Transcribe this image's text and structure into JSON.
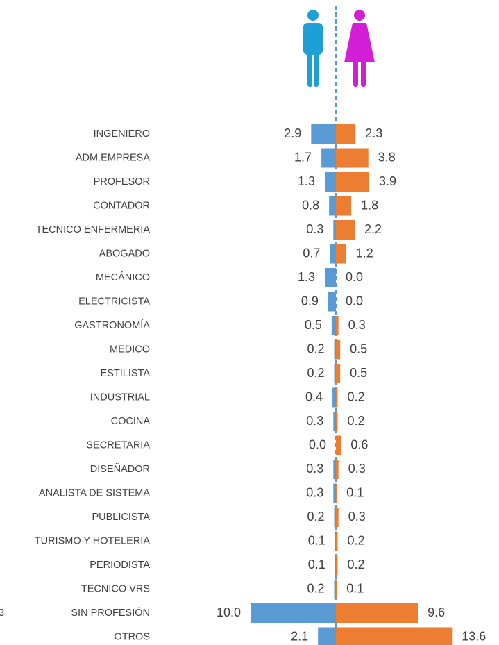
{
  "chart_data": {
    "type": "butterfly",
    "side_note": "3",
    "categories": [
      "INGENIERO",
      "ADM.EMPRESA",
      "PROFESOR",
      "CONTADOR",
      "TECNICO ENFERMERIA",
      "ABOGADO",
      "MECÁNICO",
      "ELECTRICISTA",
      "GASTRONOMÍA",
      "MEDICO",
      "ESTILISTA",
      "INDUSTRIAL",
      "COCINA",
      "SECRETARIA",
      "DISEÑADOR",
      "ANALISTA DE SISTEMA",
      "PUBLICISTA",
      "TURISMO Y HOTELERIA",
      "PERIODISTA",
      "TECNICO VRS",
      "SIN PROFESIÓN",
      "OTROS"
    ],
    "series": [
      {
        "color": "#5b9bd5",
        "side": "left",
        "values": [
          2.9,
          1.7,
          1.3,
          0.8,
          0.3,
          0.7,
          1.3,
          0.9,
          0.5,
          0.2,
          0.2,
          0.4,
          0.3,
          0,
          0.3,
          0.3,
          0.2,
          0.1,
          0.1,
          0.2,
          10,
          2.1
        ],
        "value_labels": [
          "2.9",
          "1.7",
          "1.3",
          "0.8",
          "0.3",
          "0.7",
          "1.3",
          "0.9",
          "0.5",
          "0.2",
          "0.2",
          "0.4",
          "0.3",
          "0.0",
          "0.3",
          "0.3",
          "0.2",
          "0.1",
          "0.1",
          "0.2",
          "10.0",
          "2.1"
        ]
      },
      {
        "color": "#ed7d31",
        "side": "right",
        "values": [
          2.3,
          3.8,
          3.9,
          1.8,
          2.2,
          1.2,
          0,
          0,
          0.3,
          0.5,
          0.5,
          0.2,
          0.2,
          0.6,
          0.3,
          0.1,
          0.3,
          0.2,
          0.2,
          0.1,
          9.6,
          13.6
        ],
        "value_labels": [
          "2.3",
          "3.8",
          "3.9",
          "1.8",
          "2.2",
          "1.2",
          "0.0",
          "0.0",
          "0.3",
          "0.5",
          "0.5",
          "0.2",
          "0.2",
          "0.6",
          "0.3",
          "0.1",
          "0.3",
          "0.2",
          "0.2",
          "0.1",
          "9.6",
          "13.6"
        ]
      }
    ]
  }
}
